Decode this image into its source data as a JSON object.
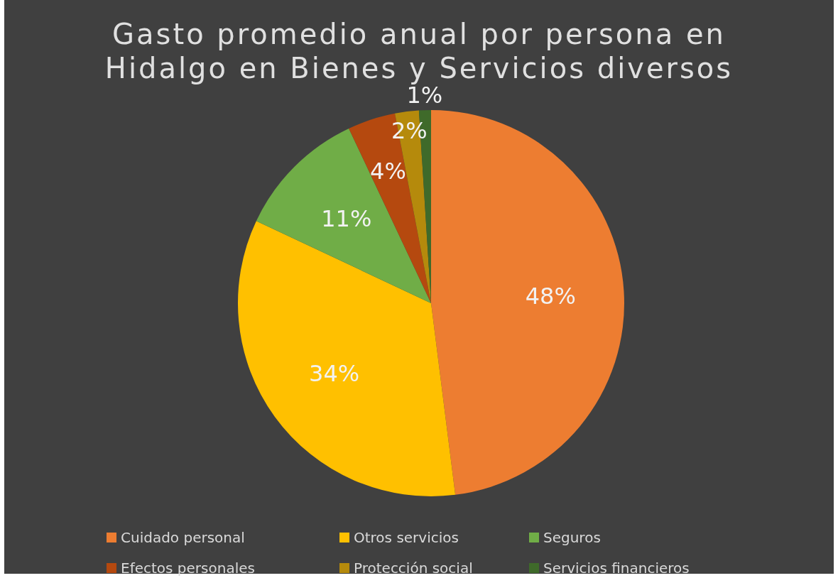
{
  "chart_data": {
    "type": "pie",
    "title": "Gasto promedio anual por persona en Hidalgo en Bienes y Servicios diversos",
    "categories": [
      "Cuidado personal",
      "Otros servicios",
      "Seguros",
      "Efectos personales",
      "Protección social",
      "Servicios financieros"
    ],
    "values": [
      48,
      34,
      11,
      4,
      2,
      1
    ],
    "colors": [
      "#ed7d31",
      "#ffc000",
      "#70ad47",
      "#b5490f",
      "#b58a0c",
      "#3f6a2a"
    ],
    "value_labels": [
      "48%",
      "34%",
      "11%",
      "4%",
      "2%",
      "1%"
    ],
    "legend": "bottom"
  }
}
